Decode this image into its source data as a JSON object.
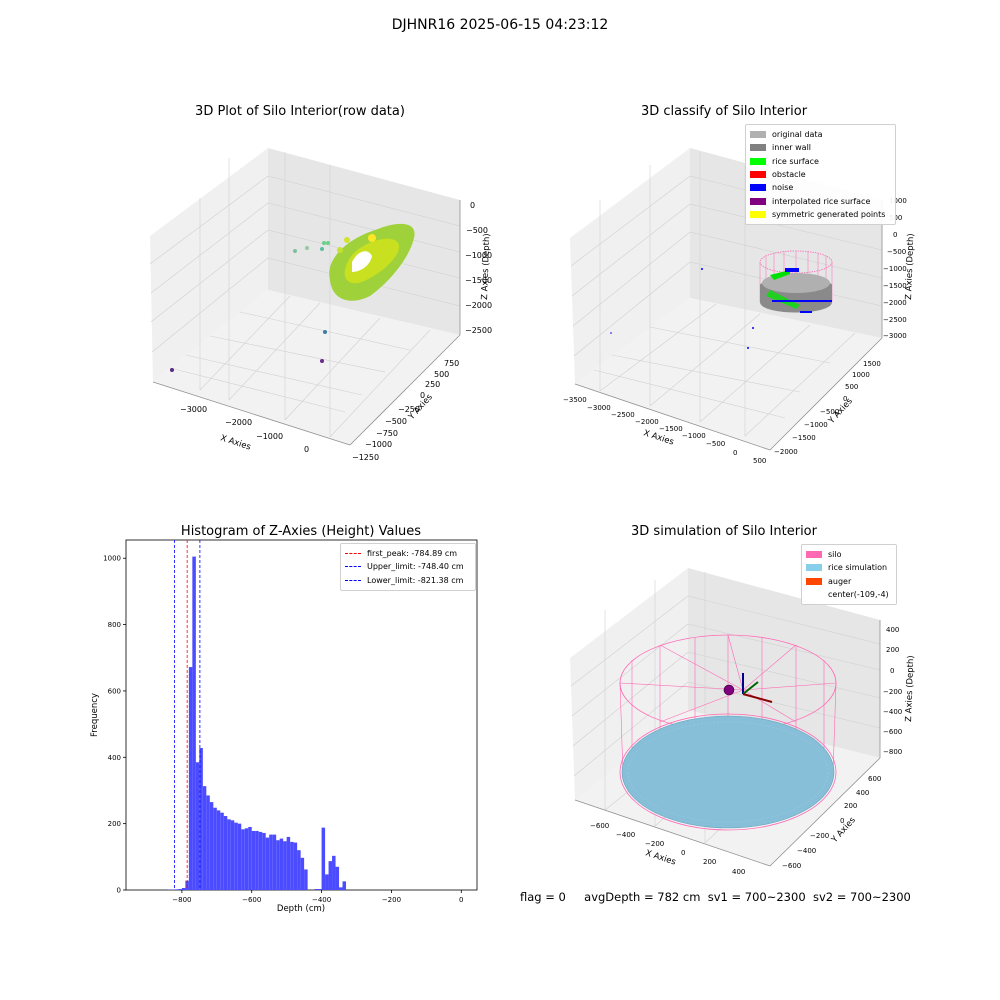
{
  "suptitle": "DJHNR16 2025-06-15 04:23:12",
  "chart_data": [
    {
      "type": "scatter",
      "projection": "3d",
      "title": "3D Plot of Silo Interior(row data)",
      "xlabel": "X Axies",
      "ylabel": "Y Axies",
      "zlabel": "Z Axies (Depth)",
      "x_ticks": [
        "−3000",
        "−2000",
        "−1000",
        "0"
      ],
      "y_ticks": [
        "−1250",
        "−1000",
        "−750",
        "−500",
        "−250",
        "0",
        "250",
        "500",
        "750"
      ],
      "z_ticks": [
        "0",
        "−500",
        "−1000",
        "−1500",
        "−2000",
        "−2500"
      ],
      "colormap": "viridis",
      "grid": true
    },
    {
      "type": "scatter",
      "projection": "3d",
      "title": "3D classify of Silo Interior",
      "xlabel": "X Axies",
      "ylabel": "Y Axies",
      "zlabel": "Z Axies (Depth)",
      "x_ticks": [
        "−3500",
        "−3000",
        "−2500",
        "−2000",
        "−1500",
        "−1000",
        "−500",
        "0",
        "500"
      ],
      "y_ticks": [
        "−2000",
        "−1500",
        "−1000",
        "−500",
        "0",
        "500",
        "1000",
        "1500"
      ],
      "z_ticks": [
        "1000",
        "500",
        "0",
        "−500",
        "−1000",
        "−1500",
        "−2000",
        "−2500",
        "−3000"
      ],
      "legend": [
        {
          "label": "original data",
          "color": "#b0b0b0"
        },
        {
          "label": "inner wall",
          "color": "#808080"
        },
        {
          "label": "rice surface",
          "color": "#00ff00"
        },
        {
          "label": "obstacle",
          "color": "#ff0000"
        },
        {
          "label": "noise",
          "color": "#0000ff"
        },
        {
          "label": "interpolated rice surface",
          "color": "#800080"
        },
        {
          "label": "symmetric generated points",
          "color": "#ffff00"
        }
      ],
      "legend_position": "top-right",
      "grid": true
    },
    {
      "type": "bar",
      "title": "Histogram of Z-Axies (Height) Values",
      "xlabel": "Depth (cm)",
      "ylabel": "Frequency",
      "xlim": [
        -960,
        45
      ],
      "ylim": [
        0,
        1055
      ],
      "x_ticks": [
        -800,
        -600,
        -400,
        -200,
        0
      ],
      "y_ticks": [
        0,
        200,
        400,
        600,
        800,
        1000
      ],
      "bar_color": "#4b4bff",
      "bin_width": 10,
      "bins": [
        {
          "x": -880,
          "v": 1
        },
        {
          "x": -870,
          "v": 1
        },
        {
          "x": -860,
          "v": 2
        },
        {
          "x": -850,
          "v": 3
        },
        {
          "x": -840,
          "v": 6
        },
        {
          "x": -830,
          "v": 28
        },
        {
          "x": -820,
          "v": 672
        },
        {
          "x": -810,
          "v": 1005
        },
        {
          "x": -800,
          "v": 385
        },
        {
          "x": -790,
          "v": 428
        },
        {
          "x": -780,
          "v": 313
        },
        {
          "x": -770,
          "v": 285
        },
        {
          "x": -760,
          "v": 265
        },
        {
          "x": -750,
          "v": 248
        },
        {
          "x": -740,
          "v": 240
        },
        {
          "x": -730,
          "v": 233
        },
        {
          "x": -720,
          "v": 223
        },
        {
          "x": -710,
          "v": 213
        },
        {
          "x": -700,
          "v": 210
        },
        {
          "x": -690,
          "v": 203
        },
        {
          "x": -680,
          "v": 200
        },
        {
          "x": -670,
          "v": 183
        },
        {
          "x": -660,
          "v": 186
        },
        {
          "x": -650,
          "v": 190
        },
        {
          "x": -640,
          "v": 178
        },
        {
          "x": -630,
          "v": 178
        },
        {
          "x": -620,
          "v": 175
        },
        {
          "x": -610,
          "v": 172
        },
        {
          "x": -600,
          "v": 158
        },
        {
          "x": -590,
          "v": 167
        },
        {
          "x": -580,
          "v": 167
        },
        {
          "x": -570,
          "v": 150
        },
        {
          "x": -560,
          "v": 155
        },
        {
          "x": -550,
          "v": 147
        },
        {
          "x": -540,
          "v": 160
        },
        {
          "x": -530,
          "v": 145
        },
        {
          "x": -520,
          "v": 143
        },
        {
          "x": -510,
          "v": 120
        },
        {
          "x": -500,
          "v": 97
        },
        {
          "x": -490,
          "v": 62
        },
        {
          "x": -480,
          "v": 0
        },
        {
          "x": -470,
          "v": 0
        },
        {
          "x": -460,
          "v": 3
        },
        {
          "x": -450,
          "v": 3
        },
        {
          "x": -440,
          "v": 188
        },
        {
          "x": -430,
          "v": 47
        },
        {
          "x": -420,
          "v": 87
        },
        {
          "x": -410,
          "v": 103
        },
        {
          "x": -400,
          "v": 70
        },
        {
          "x": -390,
          "v": 8
        },
        {
          "x": -380,
          "v": 26
        },
        {
          "x": -370,
          "v": 0
        }
      ],
      "vlines": [
        {
          "label": "first_peak: -784.89 cm",
          "x": -784.89,
          "color": "#ff0000"
        },
        {
          "label": "Upper_limit: -748.40 cm",
          "x": -748.4,
          "color": "#0000ff"
        },
        {
          "label": "Lower_limit: -821.38 cm",
          "x": -821.38,
          "color": "#0000ff"
        }
      ],
      "legend_position": "top-right"
    },
    {
      "type": "scatter",
      "projection": "3d",
      "title": "3D simulation of Silo Interior",
      "xlabel": "X Axies",
      "ylabel": "Y Axies",
      "zlabel": "Z Axies (Depth)",
      "x_ticks": [
        "−600",
        "−400",
        "−200",
        "0",
        "200",
        "400"
      ],
      "y_ticks": [
        "−600",
        "−400",
        "−200",
        "0",
        "200",
        "400",
        "600"
      ],
      "z_ticks": [
        "400",
        "200",
        "0",
        "−200",
        "−400",
        "−600",
        "−800"
      ],
      "legend": [
        {
          "label": "silo",
          "color": "#ff69b4"
        },
        {
          "label": "rice simulation",
          "color": "#87ceeb"
        },
        {
          "label": "auger",
          "color": "#ff4500"
        },
        {
          "label": "center(-109,-4)",
          "color": ""
        }
      ],
      "legend_position": "top-right",
      "grid": true
    }
  ],
  "footer": {
    "flag": "flag = 0",
    "avg_depth": "avgDepth = 782 cm",
    "sv1": "sv1 = 700~2300",
    "sv2": "sv2 = 700~2300"
  }
}
